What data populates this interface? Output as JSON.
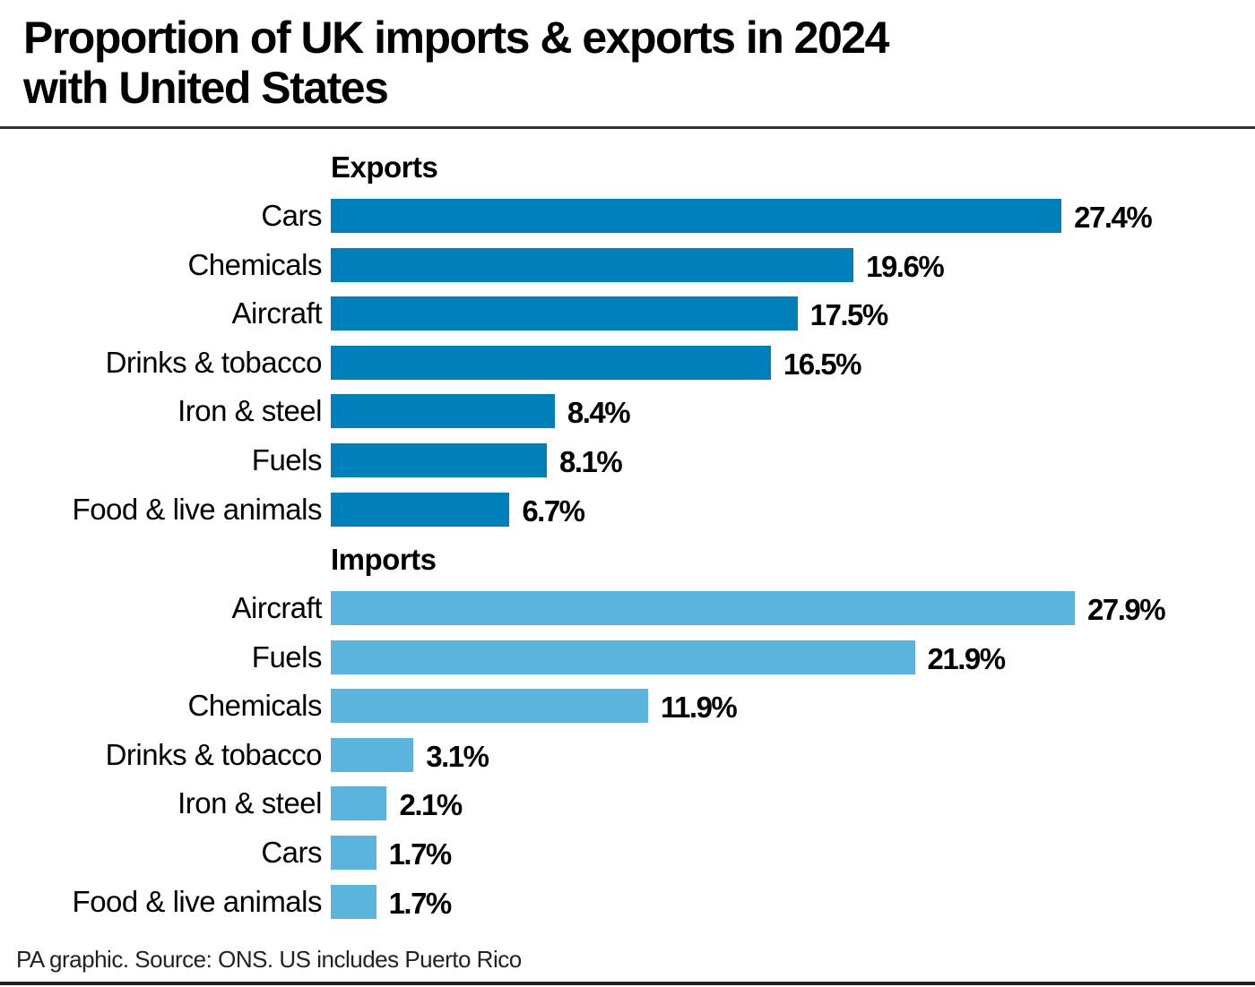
{
  "title": "Proportion of UK imports & exports in 2024 with United States",
  "title_lines": [
    "Proportion of UK imports & exports in 2024",
    "with United States"
  ],
  "footer": "PA graphic. Source: ONS. US includes Puerto Rico",
  "colors": {
    "exports": "#0080ba",
    "imports": "#5ab4dc"
  },
  "chart_data": [
    {
      "type": "bar",
      "orientation": "horizontal",
      "title": "Exports",
      "categories": [
        "Cars",
        "Chemicals",
        "Aircraft",
        "Drinks & tobacco",
        "Iron & steel",
        "Fuels",
        "Food & live animals"
      ],
      "values": [
        27.4,
        19.6,
        17.5,
        16.5,
        8.4,
        8.1,
        6.7
      ],
      "labels": [
        "27.4%",
        "19.6%",
        "17.5%",
        "16.5%",
        "8.4%",
        "8.1%",
        "6.7%"
      ],
      "unit": "%",
      "color": "#0080ba",
      "xlabel": "",
      "ylabel": "",
      "grid": false
    },
    {
      "type": "bar",
      "orientation": "horizontal",
      "title": "Imports",
      "categories": [
        "Aircraft",
        "Fuels",
        "Chemicals",
        "Drinks & tobacco",
        "Iron & steel",
        "Cars",
        "Food & live animals"
      ],
      "values": [
        27.9,
        21.9,
        11.9,
        3.1,
        2.1,
        1.7,
        1.7
      ],
      "labels": [
        "27.9%",
        "21.9%",
        "11.9%",
        "3.1%",
        "2.1%",
        "1.7%",
        "1.7%"
      ],
      "unit": "%",
      "color": "#5ab4dc",
      "xlabel": "",
      "ylabel": "",
      "grid": false
    }
  ]
}
